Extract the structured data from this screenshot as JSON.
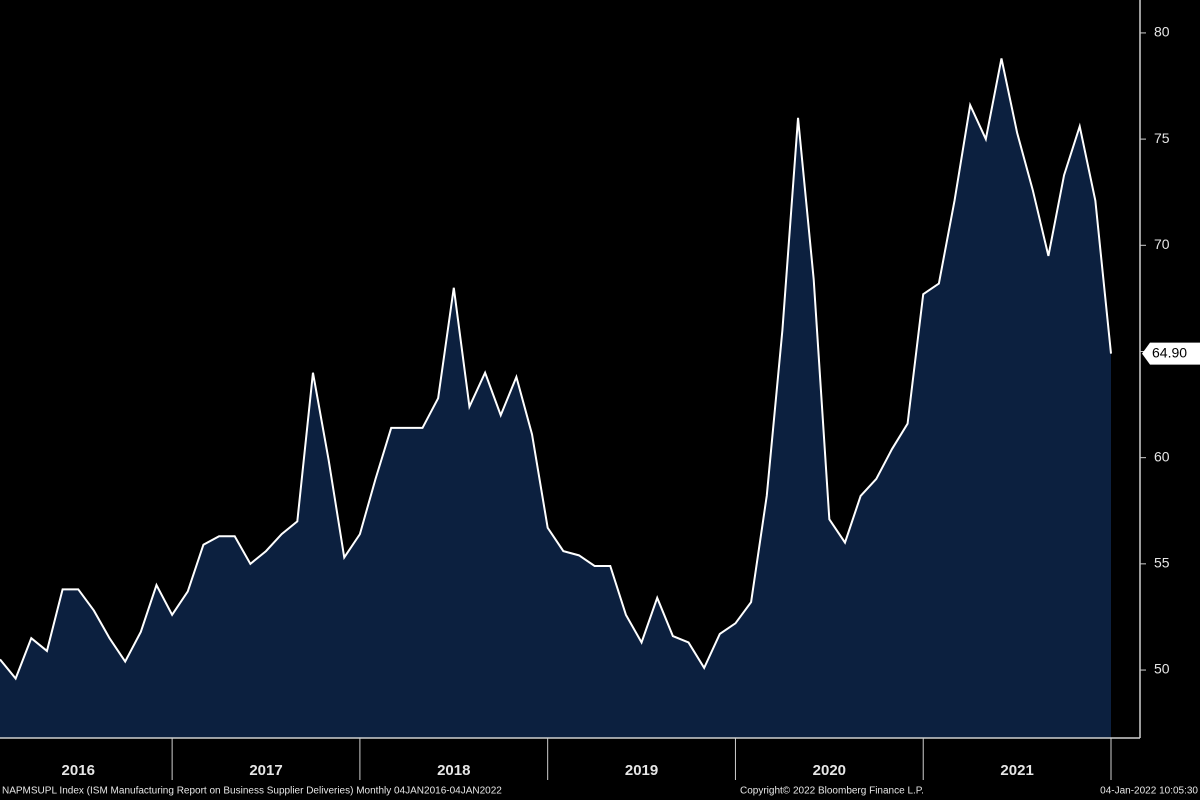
{
  "chart_data": {
    "type": "area",
    "x_labels": [
      "2016",
      "2017",
      "2018",
      "2019",
      "2020",
      "2021"
    ],
    "values": [
      50.5,
      49.6,
      51.5,
      50.9,
      53.8,
      53.8,
      52.8,
      51.5,
      50.4,
      51.8,
      54.0,
      52.6,
      53.7,
      55.9,
      56.3,
      56.3,
      55.0,
      55.6,
      56.4,
      57.0,
      64.0,
      59.9,
      55.3,
      56.4,
      59.0,
      61.4,
      61.4,
      61.4,
      62.8,
      68.0,
      62.4,
      64.0,
      62.0,
      63.8,
      61.1,
      56.7,
      55.6,
      55.4,
      54.9,
      54.9,
      52.6,
      51.3,
      53.4,
      51.6,
      51.3,
      50.1,
      51.7,
      52.2,
      53.2,
      58.2,
      66.0,
      76.0,
      68.4,
      57.1,
      56.0,
      58.2,
      59.0,
      60.4,
      61.6,
      67.7,
      68.2,
      72.1,
      76.6,
      75.0,
      78.8,
      75.3,
      72.6,
      69.5,
      73.3,
      75.6,
      72.1,
      64.9
    ],
    "value_labels": [
      null,
      null,
      null,
      null,
      null,
      null,
      null,
      null,
      null,
      null,
      null,
      null,
      null,
      null,
      null,
      null,
      null,
      null,
      null,
      null,
      null,
      null,
      null,
      null,
      null,
      null,
      null,
      null,
      null,
      null,
      null,
      null,
      null,
      null,
      null,
      null,
      null,
      null,
      null,
      null,
      null,
      null,
      null,
      null,
      null,
      null,
      null,
      null,
      null,
      null,
      null,
      null,
      null,
      null,
      null,
      null,
      null,
      null,
      null,
      null,
      null,
      null,
      null,
      null,
      null,
      null,
      null,
      null,
      null,
      null,
      null,
      "64.90"
    ],
    "color": "#0c203f",
    "line_color": "#ffffff",
    "ylim": [
      46.8,
      81.55
    ],
    "yticks": [
      50,
      55,
      60,
      65,
      70,
      75,
      80
    ],
    "source": "NAPMSUPL Index (ISM Manufacturing Report on Business Supplier Deliveries)  Monthly 04JAN2016-04JAN2022",
    "copyright": "Copyright© 2022 Bloomberg Finance L.P.",
    "timestamp": "04-Jan-2022 10:05:30"
  }
}
